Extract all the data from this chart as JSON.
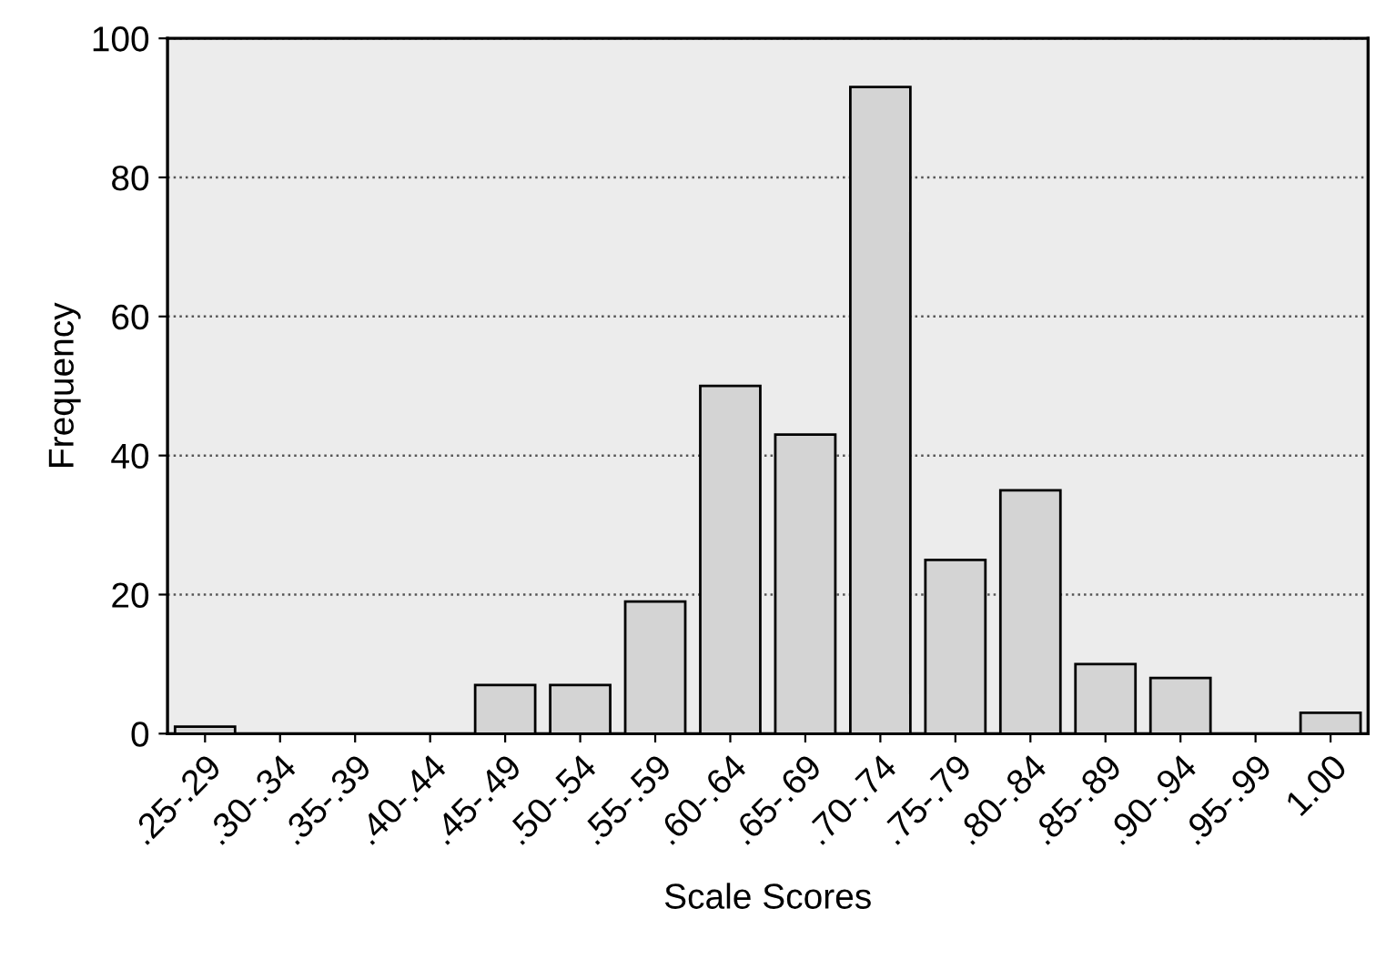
{
  "chart_data": {
    "type": "bar",
    "xlabel": "Scale Scores",
    "ylabel": "Frequency",
    "categories": [
      ".25-.29",
      ".30-.34",
      ".35-.39",
      ".40-.44",
      ".45-.49",
      ".50-.54",
      ".55-.59",
      ".60-.64",
      ".65-.69",
      ".70-.74",
      ".75-.79",
      ".80-.84",
      ".85-.89",
      ".90-.94",
      ".95-.99",
      "1.00"
    ],
    "values": [
      1,
      0,
      0,
      0,
      7,
      7,
      19,
      50,
      43,
      93,
      25,
      35,
      10,
      8,
      0,
      3
    ],
    "color": "#d4d4d4",
    "ylim": [
      0,
      100
    ],
    "yticks": [
      0,
      20,
      40,
      60,
      80,
      100
    ],
    "grid": "y"
  }
}
